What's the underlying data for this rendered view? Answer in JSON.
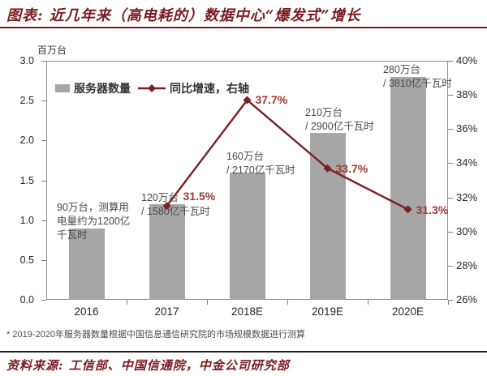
{
  "title": "图表: 近几年来（高电耗的）数据中心“爆发式”增长",
  "footnote": "* 2019-2020年服务器数量根据中国信息通信研究院的市场规模数据进行测算",
  "source": "资料来源: 工信部、中国信通院，中金公司研究部",
  "colors": {
    "accent_maroon": "#7b1b20",
    "line": "#7b2022",
    "bar": "#a6a6a6",
    "pct_label": "#9c3a32",
    "annotation": "#4a4a4a",
    "axis_text": "#262626"
  },
  "legend": {
    "bar_label": "服务器数量",
    "line_label": "同比增速，右轴"
  },
  "chart_data": {
    "type": "bar",
    "combo": "bar+line, dual axis",
    "title": "图表: 近几年来（高电耗的）数据中心“爆发式”增长",
    "categories": [
      "2016",
      "2017",
      "2018E",
      "2019E",
      "2020E"
    ],
    "series": [
      {
        "name": "服务器数量",
        "type": "bar",
        "axis": "left",
        "unit": "百万台",
        "values": [
          0.9,
          1.2,
          1.6,
          2.1,
          2.8
        ]
      },
      {
        "name": "同比增速，右轴",
        "type": "line",
        "axis": "right",
        "unit": "%",
        "values": [
          null,
          31.5,
          37.7,
          33.7,
          31.3
        ]
      }
    ],
    "point_labels": [
      "",
      "31.5%",
      "37.7%",
      "33.7%",
      "31.3%"
    ],
    "left_axis": {
      "unit": "百万台",
      "min": 0,
      "max": 3,
      "ticks": [
        "3.0",
        "2.5",
        "2.0",
        "1.5",
        "1.0",
        "0.5",
        "0.0"
      ]
    },
    "right_axis": {
      "min": 26,
      "max": 40,
      "ticks": [
        "40%",
        "38%",
        "36%",
        "34%",
        "32%",
        "30%",
        "28%",
        "26%"
      ]
    },
    "annotations": [
      {
        "category": "2016",
        "lines": [
          "90万台，测算用",
          "电量约为1200亿",
          "千瓦时"
        ]
      },
      {
        "category": "2017",
        "lines": [
          "120万台",
          "/ 1580亿千瓦时"
        ]
      },
      {
        "category": "2018E",
        "lines": [
          "160万台",
          "/ 2170亿千瓦时"
        ]
      },
      {
        "category": "2019E",
        "lines": [
          "210万台",
          "/ 2900亿千瓦时"
        ]
      },
      {
        "category": "2020E",
        "lines": [
          "280万台",
          "/ 3810亿千瓦时"
        ]
      }
    ],
    "legend_position": "top-left-inside",
    "grid": false
  }
}
